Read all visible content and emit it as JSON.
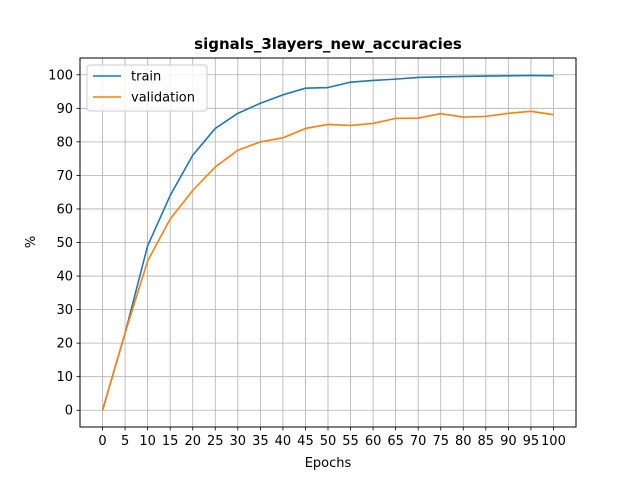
{
  "chart_data": {
    "type": "line",
    "title": "signals_3layers_new_accuracies",
    "xlabel": "Epochs",
    "ylabel": "%",
    "x": [
      0,
      5,
      10,
      15,
      20,
      25,
      30,
      35,
      40,
      45,
      50,
      55,
      60,
      65,
      70,
      75,
      80,
      85,
      90,
      95,
      100
    ],
    "xticks": [
      0,
      5,
      10,
      15,
      20,
      25,
      30,
      35,
      40,
      45,
      50,
      55,
      60,
      65,
      70,
      75,
      80,
      85,
      90,
      95,
      100
    ],
    "yticks": [
      0,
      10,
      20,
      30,
      40,
      50,
      60,
      70,
      80,
      90,
      100
    ],
    "xlim": [
      -5,
      105
    ],
    "ylim": [
      -5,
      105
    ],
    "grid": true,
    "legend_position": "top-left",
    "series": [
      {
        "name": "train",
        "color": "#1f77b4",
        "values": [
          0,
          23,
          49,
          64,
          76,
          84,
          88.5,
          91.5,
          94,
          96,
          96.2,
          97.8,
          98.3,
          98.7,
          99.2,
          99.4,
          99.5,
          99.6,
          99.7,
          99.8,
          99.7
        ]
      },
      {
        "name": "validation",
        "color": "#ff7f0e",
        "values": [
          0,
          23,
          44.5,
          57,
          65.5,
          72.5,
          77.5,
          80,
          81.2,
          84,
          85.2,
          84.9,
          85.5,
          87,
          87.1,
          88.4,
          87.4,
          87.6,
          88.5,
          89.1,
          88.1
        ]
      }
    ]
  }
}
